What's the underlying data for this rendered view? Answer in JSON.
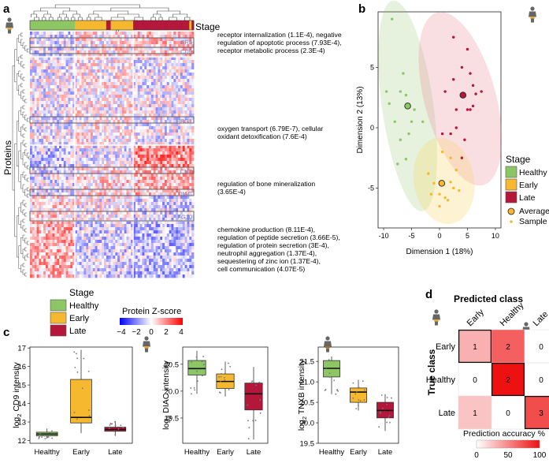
{
  "panel_labels": {
    "a": "a",
    "b": "b",
    "c": "c",
    "d": "d"
  },
  "colors": {
    "healthy": "#8cc665",
    "early": "#f5b82e",
    "late": "#b5173a",
    "low": "#0000ff",
    "mid": "#ffffff",
    "high": "#ff0000"
  },
  "panel_a": {
    "stage_label": "Stage",
    "y_label": "Proteins",
    "stage_bar": [
      "healthy",
      "healthy",
      "healthy",
      "healthy",
      "healthy",
      "healthy",
      "healthy",
      "healthy",
      "healthy",
      "healthy",
      "healthy",
      "healthy",
      "healthy",
      "healthy",
      "healthy",
      "healthy",
      "healthy",
      "healthy",
      "healthy",
      "healthy",
      "early",
      "early",
      "early",
      "early",
      "early",
      "early",
      "early",
      "early",
      "early",
      "early",
      "early",
      "early",
      "early",
      "early",
      "late",
      "late",
      "early",
      "early",
      "early",
      "early",
      "early",
      "early",
      "early",
      "early",
      "early",
      "early",
      "late",
      "late",
      "late",
      "late",
      "late",
      "late",
      "late",
      "late",
      "late",
      "late",
      "late",
      "late",
      "late",
      "late",
      "late",
      "late",
      "late",
      "late",
      "late",
      "late",
      "late",
      "late",
      "late",
      "late",
      "late",
      "early",
      "late"
    ],
    "protein_tags": [
      "SR5",
      "CD9",
      "HBG1",
      "CNT",
      "DIAC",
      "FG10"
    ],
    "annotations": [
      {
        "lines": [
          "receptor internalization (1.1E-4), negative",
          "regulation of apoptotic process (7.93E-4),",
          "receptor metabolic process (2.3E-4)"
        ]
      },
      {
        "lines": [
          "oxygen transport (6.79E-7), cellular",
          "oxidant detoxification (7.6E-4)"
        ]
      },
      {
        "lines": [
          "regulation of bone mineralization",
          "(3.65E-4)"
        ]
      },
      {
        "lines": [
          "chemokine production (8.11E-4),",
          "regulation of peptide secretion (3.66E-5),",
          "regulation of protein secretion (3E-4),",
          "neutrophil aggregation (1.37E-4),",
          "sequestering of zinc ion (1.37E-4),",
          "cell communication (4.07E-5)"
        ]
      }
    ],
    "legend_stage_title": "Stage",
    "legend_stage_items": [
      "Healthy",
      "Early",
      "Late"
    ],
    "colorbar_title": "Protein Z-score",
    "colorbar_ticks": [
      "−4",
      "−2",
      "0",
      "2",
      "4"
    ]
  },
  "chart_data": [
    {
      "type": "scatter",
      "panel": "b",
      "title": "",
      "xlabel": "Dimension 1 (18%)",
      "ylabel": "Dimension 2 (13%)",
      "xlim": [
        -11,
        11
      ],
      "ylim": [
        -8.3,
        9.6
      ],
      "xticks": [
        "-10",
        "-5",
        "0",
        "5",
        "10"
      ],
      "yticks": [
        "-5",
        "0",
        "5"
      ],
      "series": [
        {
          "name": "Healthy",
          "type": "sample",
          "points": [
            [
              -8.5,
              9
            ],
            [
              -9.5,
              3
            ],
            [
              -9,
              2
            ],
            [
              -7,
              3
            ],
            [
              -6,
              2.7
            ],
            [
              -8,
              0.5
            ],
            [
              -5,
              0.5
            ],
            [
              -5.5,
              -0.5
            ],
            [
              -7,
              -1
            ],
            [
              -6,
              -2.6
            ],
            [
              -7.5,
              -3
            ],
            [
              -4.5,
              1.5
            ],
            [
              -6.5,
              4.5
            ],
            [
              -3,
              0.5
            ]
          ]
        },
        {
          "name": "Early",
          "type": "sample",
          "points": [
            [
              0.5,
              -2
            ],
            [
              2,
              -2.5
            ],
            [
              0,
              -5.5
            ],
            [
              1,
              -5.8
            ],
            [
              2,
              -4.5
            ],
            [
              -1,
              -4.6
            ],
            [
              0,
              -6.5
            ],
            [
              2.5,
              -5
            ],
            [
              3,
              -3.5
            ],
            [
              -2,
              -3.8
            ],
            [
              1.5,
              -6
            ],
            [
              -1.5,
              -5.5
            ],
            [
              3.5,
              -5.2
            ]
          ]
        },
        {
          "name": "Late",
          "type": "sample",
          "points": [
            [
              2.5,
              7.5
            ],
            [
              5,
              6.5
            ],
            [
              2.5,
              4
            ],
            [
              5.5,
              4.5
            ],
            [
              6,
              3.5
            ],
            [
              4,
              5
            ],
            [
              1,
              3
            ],
            [
              3,
              1.5
            ],
            [
              5,
              1.5
            ],
            [
              6,
              1.8
            ],
            [
              6.5,
              2.8
            ],
            [
              2,
              -0.5
            ],
            [
              4.5,
              -1
            ],
            [
              5.5,
              1.5
            ],
            [
              0.5,
              -0.5
            ],
            [
              3,
              0
            ],
            [
              4,
              -2.5
            ],
            [
              7.5,
              3
            ]
          ]
        },
        {
          "name": "Healthy",
          "type": "average",
          "points": [
            [
              -5.7,
              1.8
            ]
          ]
        },
        {
          "name": "Early",
          "type": "average",
          "points": [
            [
              0.4,
              -4.6
            ]
          ]
        },
        {
          "name": "Late",
          "type": "average",
          "points": [
            [
              4.2,
              2.7
            ]
          ]
        }
      ],
      "ellipses": [
        {
          "name": "Healthy",
          "cx": -5.7,
          "cy": 1.8,
          "rx": 4.6,
          "ry": 8.8,
          "angle": -8
        },
        {
          "name": "Late",
          "cx": 3.7,
          "cy": 2.4,
          "rx": 6.4,
          "ry": 7.4,
          "angle": -15
        },
        {
          "name": "Early",
          "cx": 0.8,
          "cy": -4.4,
          "rx": 5.4,
          "ry": 3.6,
          "angle": -10
        }
      ],
      "legend_title": "Stage",
      "legend_items": [
        "Healthy",
        "Early",
        "Late"
      ],
      "legend_shape_items": [
        "Average",
        "Sample"
      ],
      "legend": "right"
    },
    {
      "type": "box",
      "panel": "c1",
      "categories": [
        "Healthy",
        "Early",
        "Late"
      ],
      "ylabel": "log2 CD9 intensity",
      "ylim": [
        11.85,
        17.05
      ],
      "yticks": [
        12,
        13,
        14,
        15,
        16,
        17
      ],
      "boxes": [
        {
          "min": 12.1,
          "q1": 12.25,
          "median": 12.35,
          "q3": 12.45,
          "max": 12.65
        },
        {
          "min": 12.4,
          "q1": 12.95,
          "median": 13.25,
          "q3": 15.3,
          "max": 16.9
        },
        {
          "min": 12.25,
          "q1": 12.5,
          "median": 12.6,
          "q3": 12.72,
          "max": 13.05
        }
      ]
    },
    {
      "type": "box",
      "panel": "c2",
      "categories": [
        "Healthy",
        "Early",
        "Late"
      ],
      "ylabel": "log2 DIAC intensity",
      "ylim": [
        19.03,
        20.82
      ],
      "yticks": [
        19.5,
        20.0,
        20.5
      ],
      "boxes": [
        {
          "min": 19.95,
          "q1": 20.3,
          "median": 20.42,
          "q3": 20.57,
          "max": 20.75
        },
        {
          "min": 19.9,
          "q1": 20.05,
          "median": 20.18,
          "q3": 20.32,
          "max": 20.55
        },
        {
          "min": 19.1,
          "q1": 19.65,
          "median": 19.95,
          "q3": 20.15,
          "max": 20.45
        }
      ]
    },
    {
      "type": "box",
      "panel": "c3",
      "categories": [
        "Healthy",
        "Early",
        "Late"
      ],
      "ylabel": "log2 TNXB intensity",
      "ylim": [
        19.5,
        21.85
      ],
      "yticks": [
        19.5,
        20.0,
        20.5,
        21.0,
        21.5
      ],
      "boxes": [
        {
          "min": 20.7,
          "q1": 21.12,
          "median": 21.33,
          "q3": 21.52,
          "max": 21.62
        },
        {
          "min": 20.3,
          "q1": 20.5,
          "median": 20.75,
          "q3": 20.85,
          "max": 21.05
        },
        {
          "min": 19.8,
          "q1": 20.12,
          "median": 20.3,
          "q3": 20.5,
          "max": 20.7
        }
      ]
    },
    {
      "type": "heatmap",
      "panel": "d",
      "title": "Predicted class",
      "xlabel": "Predicted class",
      "ylabel": "True class",
      "x_categories": [
        "Early",
        "Healthy",
        "Late"
      ],
      "y_categories": [
        "Early",
        "Healthy",
        "Late"
      ],
      "values": [
        [
          1,
          2,
          0
        ],
        [
          0,
          2,
          0
        ],
        [
          1,
          0,
          3
        ]
      ],
      "accuracy": [
        [
          33,
          67,
          0
        ],
        [
          0,
          100,
          0
        ],
        [
          25,
          0,
          75
        ]
      ],
      "colorbar_title": "Prediction accuracy %",
      "colorbar_ticks": [
        "0",
        "50",
        "100"
      ]
    }
  ]
}
